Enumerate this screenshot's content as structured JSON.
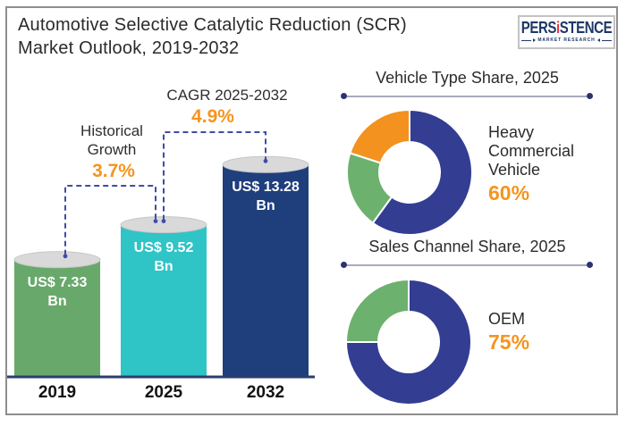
{
  "header": {
    "title_line1": "Automotive Selective Catalytic Reduction (SCR)",
    "title_line2": "Market Outlook, 2019-2032"
  },
  "logo": {
    "part1": "PERS",
    "accent": "i",
    "part2": "STENCE",
    "subtitle": "MARKET RESEARCH"
  },
  "colors": {
    "accent_orange": "#f7941d",
    "bar_green": "#68a96b",
    "bar_teal": "#2fc4c6",
    "bar_navy": "#1f3e7c",
    "donut_navy": "#333d92",
    "donut_green": "#6cb16e",
    "donut_orange": "#f3921f",
    "axis_navy": "#2c3e70",
    "dash_navy": "#3f4ca6",
    "ellipse_gray": "#d9d9d9"
  },
  "chart_data": [
    {
      "type": "bar",
      "categories": [
        "2019",
        "2025",
        "2032"
      ],
      "values": [
        7.33,
        9.52,
        13.28
      ],
      "unit": "US$ Bn",
      "bar_labels": [
        [
          "US$ 7.33",
          "Bn"
        ],
        [
          "US$ 9.52",
          "Bn"
        ],
        [
          "US$ 13.28",
          "Bn"
        ]
      ],
      "colors": [
        "#68a96b",
        "#2fc4c6",
        "#1f3e7c"
      ],
      "annotations": [
        {
          "label": "Historical Growth",
          "value": "3.7%",
          "from": "2019",
          "to": "2025"
        },
        {
          "label": "CAGR 2025-2032",
          "value": "4.9%",
          "from": "2025",
          "to": "2032"
        }
      ]
    },
    {
      "type": "pie",
      "title": "Vehicle Type Share, 2025",
      "segments": [
        {
          "label": "Heavy Commercial Vehicle",
          "value": 60,
          "color": "#333d92"
        },
        {
          "label": "",
          "value": 20,
          "color": "#6cb16e"
        },
        {
          "label": "",
          "value": 20,
          "color": "#f3921f"
        }
      ],
      "callout": {
        "label": "Heavy Commercial Vehicle",
        "value": "60%"
      }
    },
    {
      "type": "pie",
      "title": "Sales Channel Share, 2025",
      "segments": [
        {
          "label": "OEM",
          "value": 75,
          "color": "#333d92"
        },
        {
          "label": "",
          "value": 25,
          "color": "#6cb16e"
        }
      ],
      "callout": {
        "label": "OEM",
        "value": "75%"
      }
    }
  ]
}
